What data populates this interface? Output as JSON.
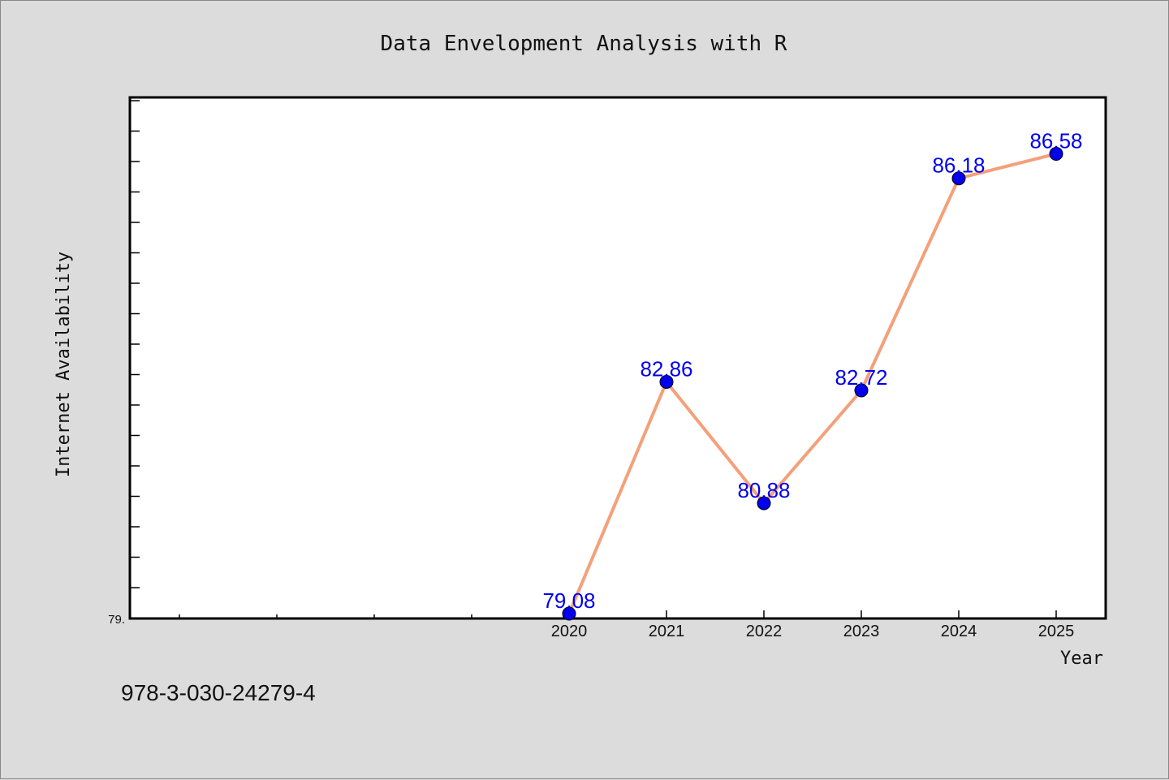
{
  "chart_data": {
    "type": "line",
    "title": "Data Envelopment Analysis with R",
    "xlabel": "Year",
    "ylabel": "Internet Availability",
    "x": [
      "2020",
      "2021",
      "2022",
      "2023",
      "2024",
      "2025"
    ],
    "series": [
      {
        "values": [
          79.08,
          82.86,
          80.88,
          82.72,
          86.18,
          86.58
        ],
        "line_color": "#f4a07a",
        "marker_color": "#0000ee"
      }
    ],
    "data_labels": [
      "79.08",
      "82.86",
      "80.88",
      "82.72",
      "86.18",
      "86.58"
    ],
    "ytick_labels": [
      "79."
    ],
    "ylim": [
      79.0,
      87.5
    ],
    "grid": false,
    "legend": "none"
  },
  "footnote": "978-3-030-24279-4",
  "colors": {
    "background": "#dcdcdc",
    "plot_area": "#ffffff",
    "label_color": "#0000ee"
  }
}
